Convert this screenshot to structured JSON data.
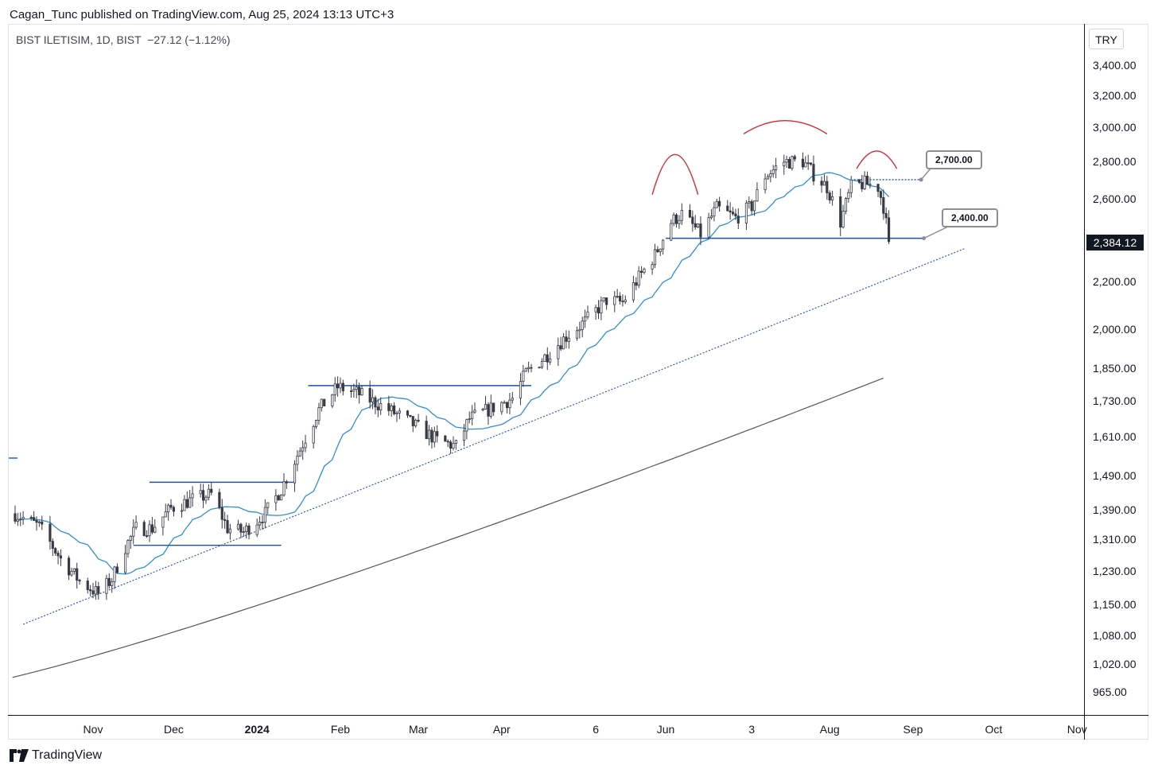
{
  "publisher_line": "Cagan_Tunc published on TradingView.com, Aug 25, 2024 13:13 UTC+3",
  "legend": "BIST ILETISIM, 1D, BIST  −27.12 (−1.12%)",
  "currency": "TRY",
  "last_price": "2,384.12",
  "brand": "TradingView",
  "callouts": {
    "upper": "2,700.00",
    "lower": "2,400.00"
  },
  "colors": {
    "up": "#ffffff",
    "down": "#363a45",
    "ma_short": "#2f8fd8",
    "ma_long": "#555555",
    "levels": "#1e4fb5",
    "arcs": "#d42a34"
  },
  "chart_data": {
    "type": "candlestick",
    "symbol": "BIST ILETISIM",
    "interval": "1D",
    "y_tick_labels": [
      "3,400.00",
      "3,200.00",
      "3,000.00",
      "2,800.00",
      "2,600.00",
      "2,200.00",
      "2,000.00",
      "1,850.00",
      "1,730.00",
      "1,610.00",
      "1,490.00",
      "1,390.00",
      "1,310.00",
      "1,230.00",
      "1,150.00",
      "1,080.00",
      "1,020.00",
      "965.00"
    ],
    "x_tick_labels": [
      "Nov",
      "Dec",
      "2024",
      "Feb",
      "Mar",
      "Apr",
      "6",
      "Jun",
      "3",
      "Aug",
      "Sep",
      "Oct",
      "Nov"
    ],
    "y_scale": "log",
    "annotations": [
      {
        "type": "horizontal",
        "y": 2400,
        "from": "2024-06-01",
        "to": "2024-09-05"
      },
      {
        "type": "horizontal",
        "y": 2700,
        "from": "2024-08-10",
        "to": "2024-09-04",
        "style": "dotted"
      },
      {
        "type": "horizontal",
        "y": 1470,
        "from": "2023-11-22",
        "to": "2024-01-15"
      },
      {
        "type": "horizontal",
        "y": 1295,
        "from": "2023-11-16",
        "to": "2024-01-10"
      },
      {
        "type": "horizontal",
        "y": 1785,
        "from": "2024-01-20",
        "to": "2024-04-12"
      },
      {
        "type": "trendline",
        "style": "dotted",
        "y0": 1105,
        "y1": 2350,
        "from": "2023-10-06",
        "to": "2024-09-20"
      }
    ]
  }
}
